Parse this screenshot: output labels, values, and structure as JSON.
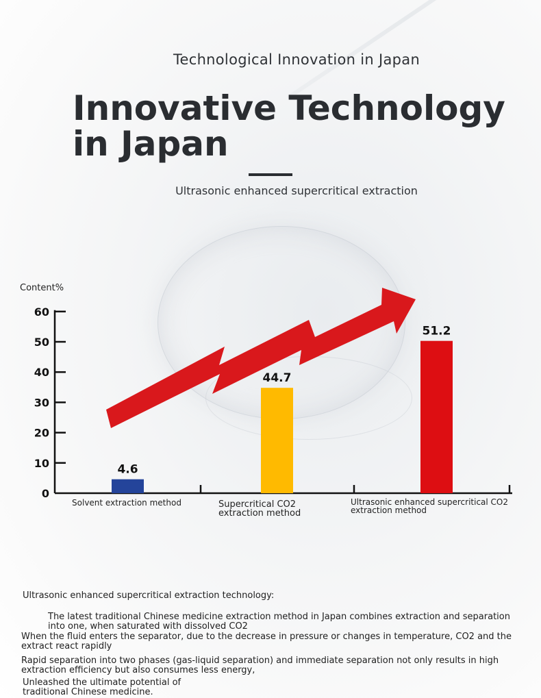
{
  "header": {
    "subtitle": "Technological Innovation in Japan",
    "title": "Innovative Technology in Japan",
    "tagline": "Ultrasonic enhanced supercritical extraction"
  },
  "chart_data": {
    "type": "bar",
    "ylabel": "Content%",
    "ylim": [
      0,
      60
    ],
    "yticks": [
      "0",
      "10",
      "20",
      "30",
      "40",
      "50",
      "60"
    ],
    "categories": [
      "Solvent extraction method",
      "Supercritical CO2 extraction method",
      "Ultrasonic enhanced supercritical CO2 extraction method"
    ],
    "values": [
      4.6,
      44.7,
      51.2
    ],
    "data_labels": [
      "4.6",
      "44.7",
      "51.2"
    ],
    "bar_colors": [
      "#24449a",
      "#ffba00",
      "#dd0e12"
    ],
    "trend_arrow_color": "#d9181c",
    "grid": false
  },
  "description": {
    "heading": "Ultrasonic enhanced supercritical extraction technology:",
    "p1": "The latest traditional Chinese medicine extraction method in Japan combines extraction and separation into one, when saturated with dissolved CO2",
    "p2": "When the fluid enters the separator, due to the decrease in pressure or changes in temperature, CO2 and the extract react rapidly",
    "p3": "Rapid separation into two phases (gas-liquid separation) and immediate separation not only results in high extraction efficiency but also consumes less energy,",
    "p4": "Unleashed the ultimate potential of traditional Chinese medicine."
  }
}
